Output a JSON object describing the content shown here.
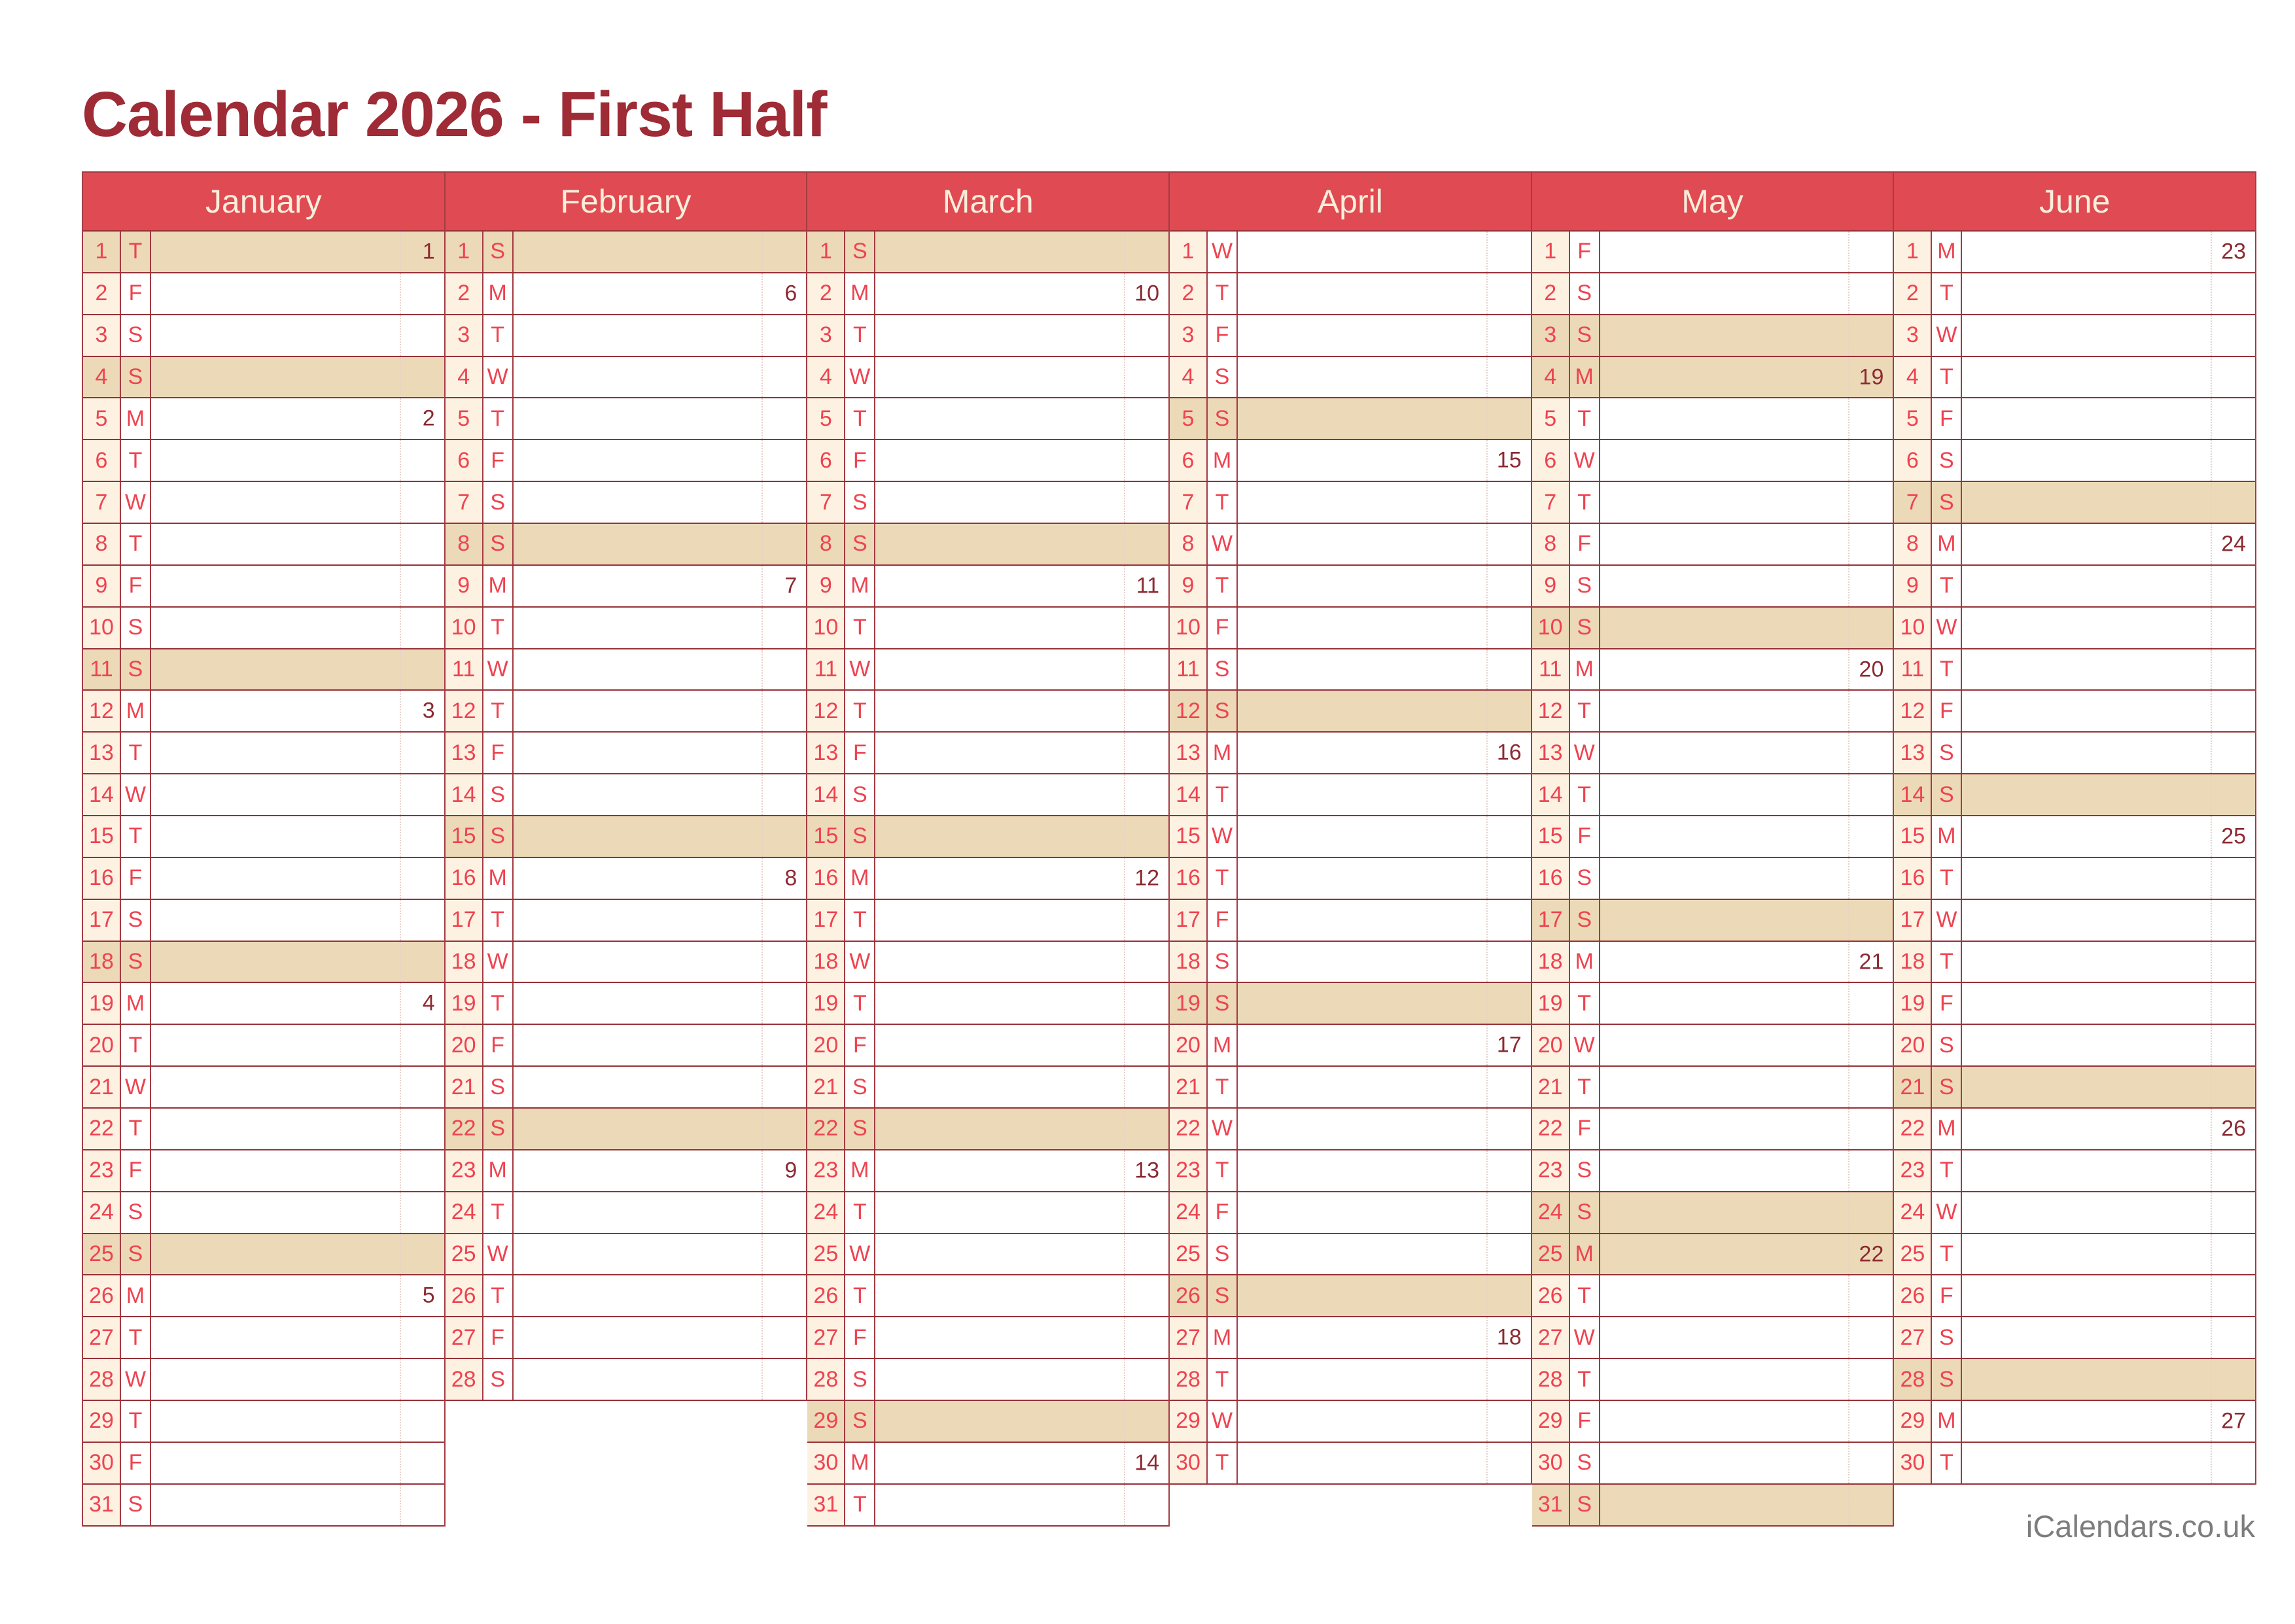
{
  "title": "Calendar 2026 - First Half",
  "footer": "iCalendars.co.uk",
  "colors": {
    "page_bg": "#ffffff",
    "title_text": "#9e2b35",
    "header_bg": "#e04a52",
    "header_text": "#f8eedb",
    "day_text": "#ee4350",
    "week_text": "#8c2a32",
    "highlight_bg": "#ecd9b7",
    "numcell_bg": "#fdf1e2",
    "grid_border": "#a43b43",
    "row_border": "#963138",
    "dotted_line": "#e9d0ca",
    "footer_text": "#7d7d7d"
  },
  "day_row_format": [
    "day_number",
    "weekday_letter",
    "week_number_or_null",
    "highlighted_flag"
  ],
  "months": [
    {
      "name": "January",
      "days": [
        [
          1,
          "T",
          1,
          1
        ],
        [
          2,
          "F",
          null,
          0
        ],
        [
          3,
          "S",
          null,
          0
        ],
        [
          4,
          "S",
          null,
          1
        ],
        [
          5,
          "M",
          2,
          0
        ],
        [
          6,
          "T",
          null,
          0
        ],
        [
          7,
          "W",
          null,
          0
        ],
        [
          8,
          "T",
          null,
          0
        ],
        [
          9,
          "F",
          null,
          0
        ],
        [
          10,
          "S",
          null,
          0
        ],
        [
          11,
          "S",
          null,
          1
        ],
        [
          12,
          "M",
          3,
          0
        ],
        [
          13,
          "T",
          null,
          0
        ],
        [
          14,
          "W",
          null,
          0
        ],
        [
          15,
          "T",
          null,
          0
        ],
        [
          16,
          "F",
          null,
          0
        ],
        [
          17,
          "S",
          null,
          0
        ],
        [
          18,
          "S",
          null,
          1
        ],
        [
          19,
          "M",
          4,
          0
        ],
        [
          20,
          "T",
          null,
          0
        ],
        [
          21,
          "W",
          null,
          0
        ],
        [
          22,
          "T",
          null,
          0
        ],
        [
          23,
          "F",
          null,
          0
        ],
        [
          24,
          "S",
          null,
          0
        ],
        [
          25,
          "S",
          null,
          1
        ],
        [
          26,
          "M",
          5,
          0
        ],
        [
          27,
          "T",
          null,
          0
        ],
        [
          28,
          "W",
          null,
          0
        ],
        [
          29,
          "T",
          null,
          0
        ],
        [
          30,
          "F",
          null,
          0
        ],
        [
          31,
          "S",
          null,
          0
        ]
      ]
    },
    {
      "name": "February",
      "days": [
        [
          1,
          "S",
          null,
          1
        ],
        [
          2,
          "M",
          6,
          0
        ],
        [
          3,
          "T",
          null,
          0
        ],
        [
          4,
          "W",
          null,
          0
        ],
        [
          5,
          "T",
          null,
          0
        ],
        [
          6,
          "F",
          null,
          0
        ],
        [
          7,
          "S",
          null,
          0
        ],
        [
          8,
          "S",
          null,
          1
        ],
        [
          9,
          "M",
          7,
          0
        ],
        [
          10,
          "T",
          null,
          0
        ],
        [
          11,
          "W",
          null,
          0
        ],
        [
          12,
          "T",
          null,
          0
        ],
        [
          13,
          "F",
          null,
          0
        ],
        [
          14,
          "S",
          null,
          0
        ],
        [
          15,
          "S",
          null,
          1
        ],
        [
          16,
          "M",
          8,
          0
        ],
        [
          17,
          "T",
          null,
          0
        ],
        [
          18,
          "W",
          null,
          0
        ],
        [
          19,
          "T",
          null,
          0
        ],
        [
          20,
          "F",
          null,
          0
        ],
        [
          21,
          "S",
          null,
          0
        ],
        [
          22,
          "S",
          null,
          1
        ],
        [
          23,
          "M",
          9,
          0
        ],
        [
          24,
          "T",
          null,
          0
        ],
        [
          25,
          "W",
          null,
          0
        ],
        [
          26,
          "T",
          null,
          0
        ],
        [
          27,
          "F",
          null,
          0
        ],
        [
          28,
          "S",
          null,
          0
        ]
      ]
    },
    {
      "name": "March",
      "days": [
        [
          1,
          "S",
          null,
          1
        ],
        [
          2,
          "M",
          10,
          0
        ],
        [
          3,
          "T",
          null,
          0
        ],
        [
          4,
          "W",
          null,
          0
        ],
        [
          5,
          "T",
          null,
          0
        ],
        [
          6,
          "F",
          null,
          0
        ],
        [
          7,
          "S",
          null,
          0
        ],
        [
          8,
          "S",
          null,
          1
        ],
        [
          9,
          "M",
          11,
          0
        ],
        [
          10,
          "T",
          null,
          0
        ],
        [
          11,
          "W",
          null,
          0
        ],
        [
          12,
          "T",
          null,
          0
        ],
        [
          13,
          "F",
          null,
          0
        ],
        [
          14,
          "S",
          null,
          0
        ],
        [
          15,
          "S",
          null,
          1
        ],
        [
          16,
          "M",
          12,
          0
        ],
        [
          17,
          "T",
          null,
          0
        ],
        [
          18,
          "W",
          null,
          0
        ],
        [
          19,
          "T",
          null,
          0
        ],
        [
          20,
          "F",
          null,
          0
        ],
        [
          21,
          "S",
          null,
          0
        ],
        [
          22,
          "S",
          null,
          1
        ],
        [
          23,
          "M",
          13,
          0
        ],
        [
          24,
          "T",
          null,
          0
        ],
        [
          25,
          "W",
          null,
          0
        ],
        [
          26,
          "T",
          null,
          0
        ],
        [
          27,
          "F",
          null,
          0
        ],
        [
          28,
          "S",
          null,
          0
        ],
        [
          29,
          "S",
          null,
          1
        ],
        [
          30,
          "M",
          14,
          0
        ],
        [
          31,
          "T",
          null,
          0
        ]
      ]
    },
    {
      "name": "April",
      "days": [
        [
          1,
          "W",
          null,
          0
        ],
        [
          2,
          "T",
          null,
          0
        ],
        [
          3,
          "F",
          null,
          0
        ],
        [
          4,
          "S",
          null,
          0
        ],
        [
          5,
          "S",
          null,
          1
        ],
        [
          6,
          "M",
          15,
          0
        ],
        [
          7,
          "T",
          null,
          0
        ],
        [
          8,
          "W",
          null,
          0
        ],
        [
          9,
          "T",
          null,
          0
        ],
        [
          10,
          "F",
          null,
          0
        ],
        [
          11,
          "S",
          null,
          0
        ],
        [
          12,
          "S",
          null,
          1
        ],
        [
          13,
          "M",
          16,
          0
        ],
        [
          14,
          "T",
          null,
          0
        ],
        [
          15,
          "W",
          null,
          0
        ],
        [
          16,
          "T",
          null,
          0
        ],
        [
          17,
          "F",
          null,
          0
        ],
        [
          18,
          "S",
          null,
          0
        ],
        [
          19,
          "S",
          null,
          1
        ],
        [
          20,
          "M",
          17,
          0
        ],
        [
          21,
          "T",
          null,
          0
        ],
        [
          22,
          "W",
          null,
          0
        ],
        [
          23,
          "T",
          null,
          0
        ],
        [
          24,
          "F",
          null,
          0
        ],
        [
          25,
          "S",
          null,
          0
        ],
        [
          26,
          "S",
          null,
          1
        ],
        [
          27,
          "M",
          18,
          0
        ],
        [
          28,
          "T",
          null,
          0
        ],
        [
          29,
          "W",
          null,
          0
        ],
        [
          30,
          "T",
          null,
          0
        ]
      ]
    },
    {
      "name": "May",
      "days": [
        [
          1,
          "F",
          null,
          0
        ],
        [
          2,
          "S",
          null,
          0
        ],
        [
          3,
          "S",
          null,
          1
        ],
        [
          4,
          "M",
          19,
          1
        ],
        [
          5,
          "T",
          null,
          0
        ],
        [
          6,
          "W",
          null,
          0
        ],
        [
          7,
          "T",
          null,
          0
        ],
        [
          8,
          "F",
          null,
          0
        ],
        [
          9,
          "S",
          null,
          0
        ],
        [
          10,
          "S",
          null,
          1
        ],
        [
          11,
          "M",
          20,
          0
        ],
        [
          12,
          "T",
          null,
          0
        ],
        [
          13,
          "W",
          null,
          0
        ],
        [
          14,
          "T",
          null,
          0
        ],
        [
          15,
          "F",
          null,
          0
        ],
        [
          16,
          "S",
          null,
          0
        ],
        [
          17,
          "S",
          null,
          1
        ],
        [
          18,
          "M",
          21,
          0
        ],
        [
          19,
          "T",
          null,
          0
        ],
        [
          20,
          "W",
          null,
          0
        ],
        [
          21,
          "T",
          null,
          0
        ],
        [
          22,
          "F",
          null,
          0
        ],
        [
          23,
          "S",
          null,
          0
        ],
        [
          24,
          "S",
          null,
          1
        ],
        [
          25,
          "M",
          22,
          1
        ],
        [
          26,
          "T",
          null,
          0
        ],
        [
          27,
          "W",
          null,
          0
        ],
        [
          28,
          "T",
          null,
          0
        ],
        [
          29,
          "F",
          null,
          0
        ],
        [
          30,
          "S",
          null,
          0
        ],
        [
          31,
          "S",
          null,
          1
        ]
      ]
    },
    {
      "name": "June",
      "days": [
        [
          1,
          "M",
          23,
          0
        ],
        [
          2,
          "T",
          null,
          0
        ],
        [
          3,
          "W",
          null,
          0
        ],
        [
          4,
          "T",
          null,
          0
        ],
        [
          5,
          "F",
          null,
          0
        ],
        [
          6,
          "S",
          null,
          0
        ],
        [
          7,
          "S",
          null,
          1
        ],
        [
          8,
          "M",
          24,
          0
        ],
        [
          9,
          "T",
          null,
          0
        ],
        [
          10,
          "W",
          null,
          0
        ],
        [
          11,
          "T",
          null,
          0
        ],
        [
          12,
          "F",
          null,
          0
        ],
        [
          13,
          "S",
          null,
          0
        ],
        [
          14,
          "S",
          null,
          1
        ],
        [
          15,
          "M",
          25,
          0
        ],
        [
          16,
          "T",
          null,
          0
        ],
        [
          17,
          "W",
          null,
          0
        ],
        [
          18,
          "T",
          null,
          0
        ],
        [
          19,
          "F",
          null,
          0
        ],
        [
          20,
          "S",
          null,
          0
        ],
        [
          21,
          "S",
          null,
          1
        ],
        [
          22,
          "M",
          26,
          0
        ],
        [
          23,
          "T",
          null,
          0
        ],
        [
          24,
          "W",
          null,
          0
        ],
        [
          25,
          "T",
          null,
          0
        ],
        [
          26,
          "F",
          null,
          0
        ],
        [
          27,
          "S",
          null,
          0
        ],
        [
          28,
          "S",
          null,
          1
        ],
        [
          29,
          "M",
          27,
          0
        ],
        [
          30,
          "T",
          null,
          0
        ]
      ]
    }
  ]
}
